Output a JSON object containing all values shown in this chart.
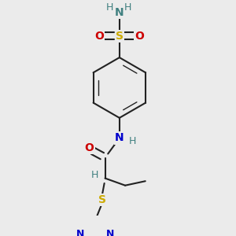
{
  "bg_color": "#ebebeb",
  "bond_color": "#222222",
  "S_color": "#ccaa00",
  "N_color": "#0000cc",
  "O_color": "#cc0000",
  "H_color": "#408080",
  "figsize": [
    3.0,
    3.0
  ],
  "dpi": 100,
  "xlim": [
    0,
    300
  ],
  "ylim": [
    0,
    300
  ]
}
